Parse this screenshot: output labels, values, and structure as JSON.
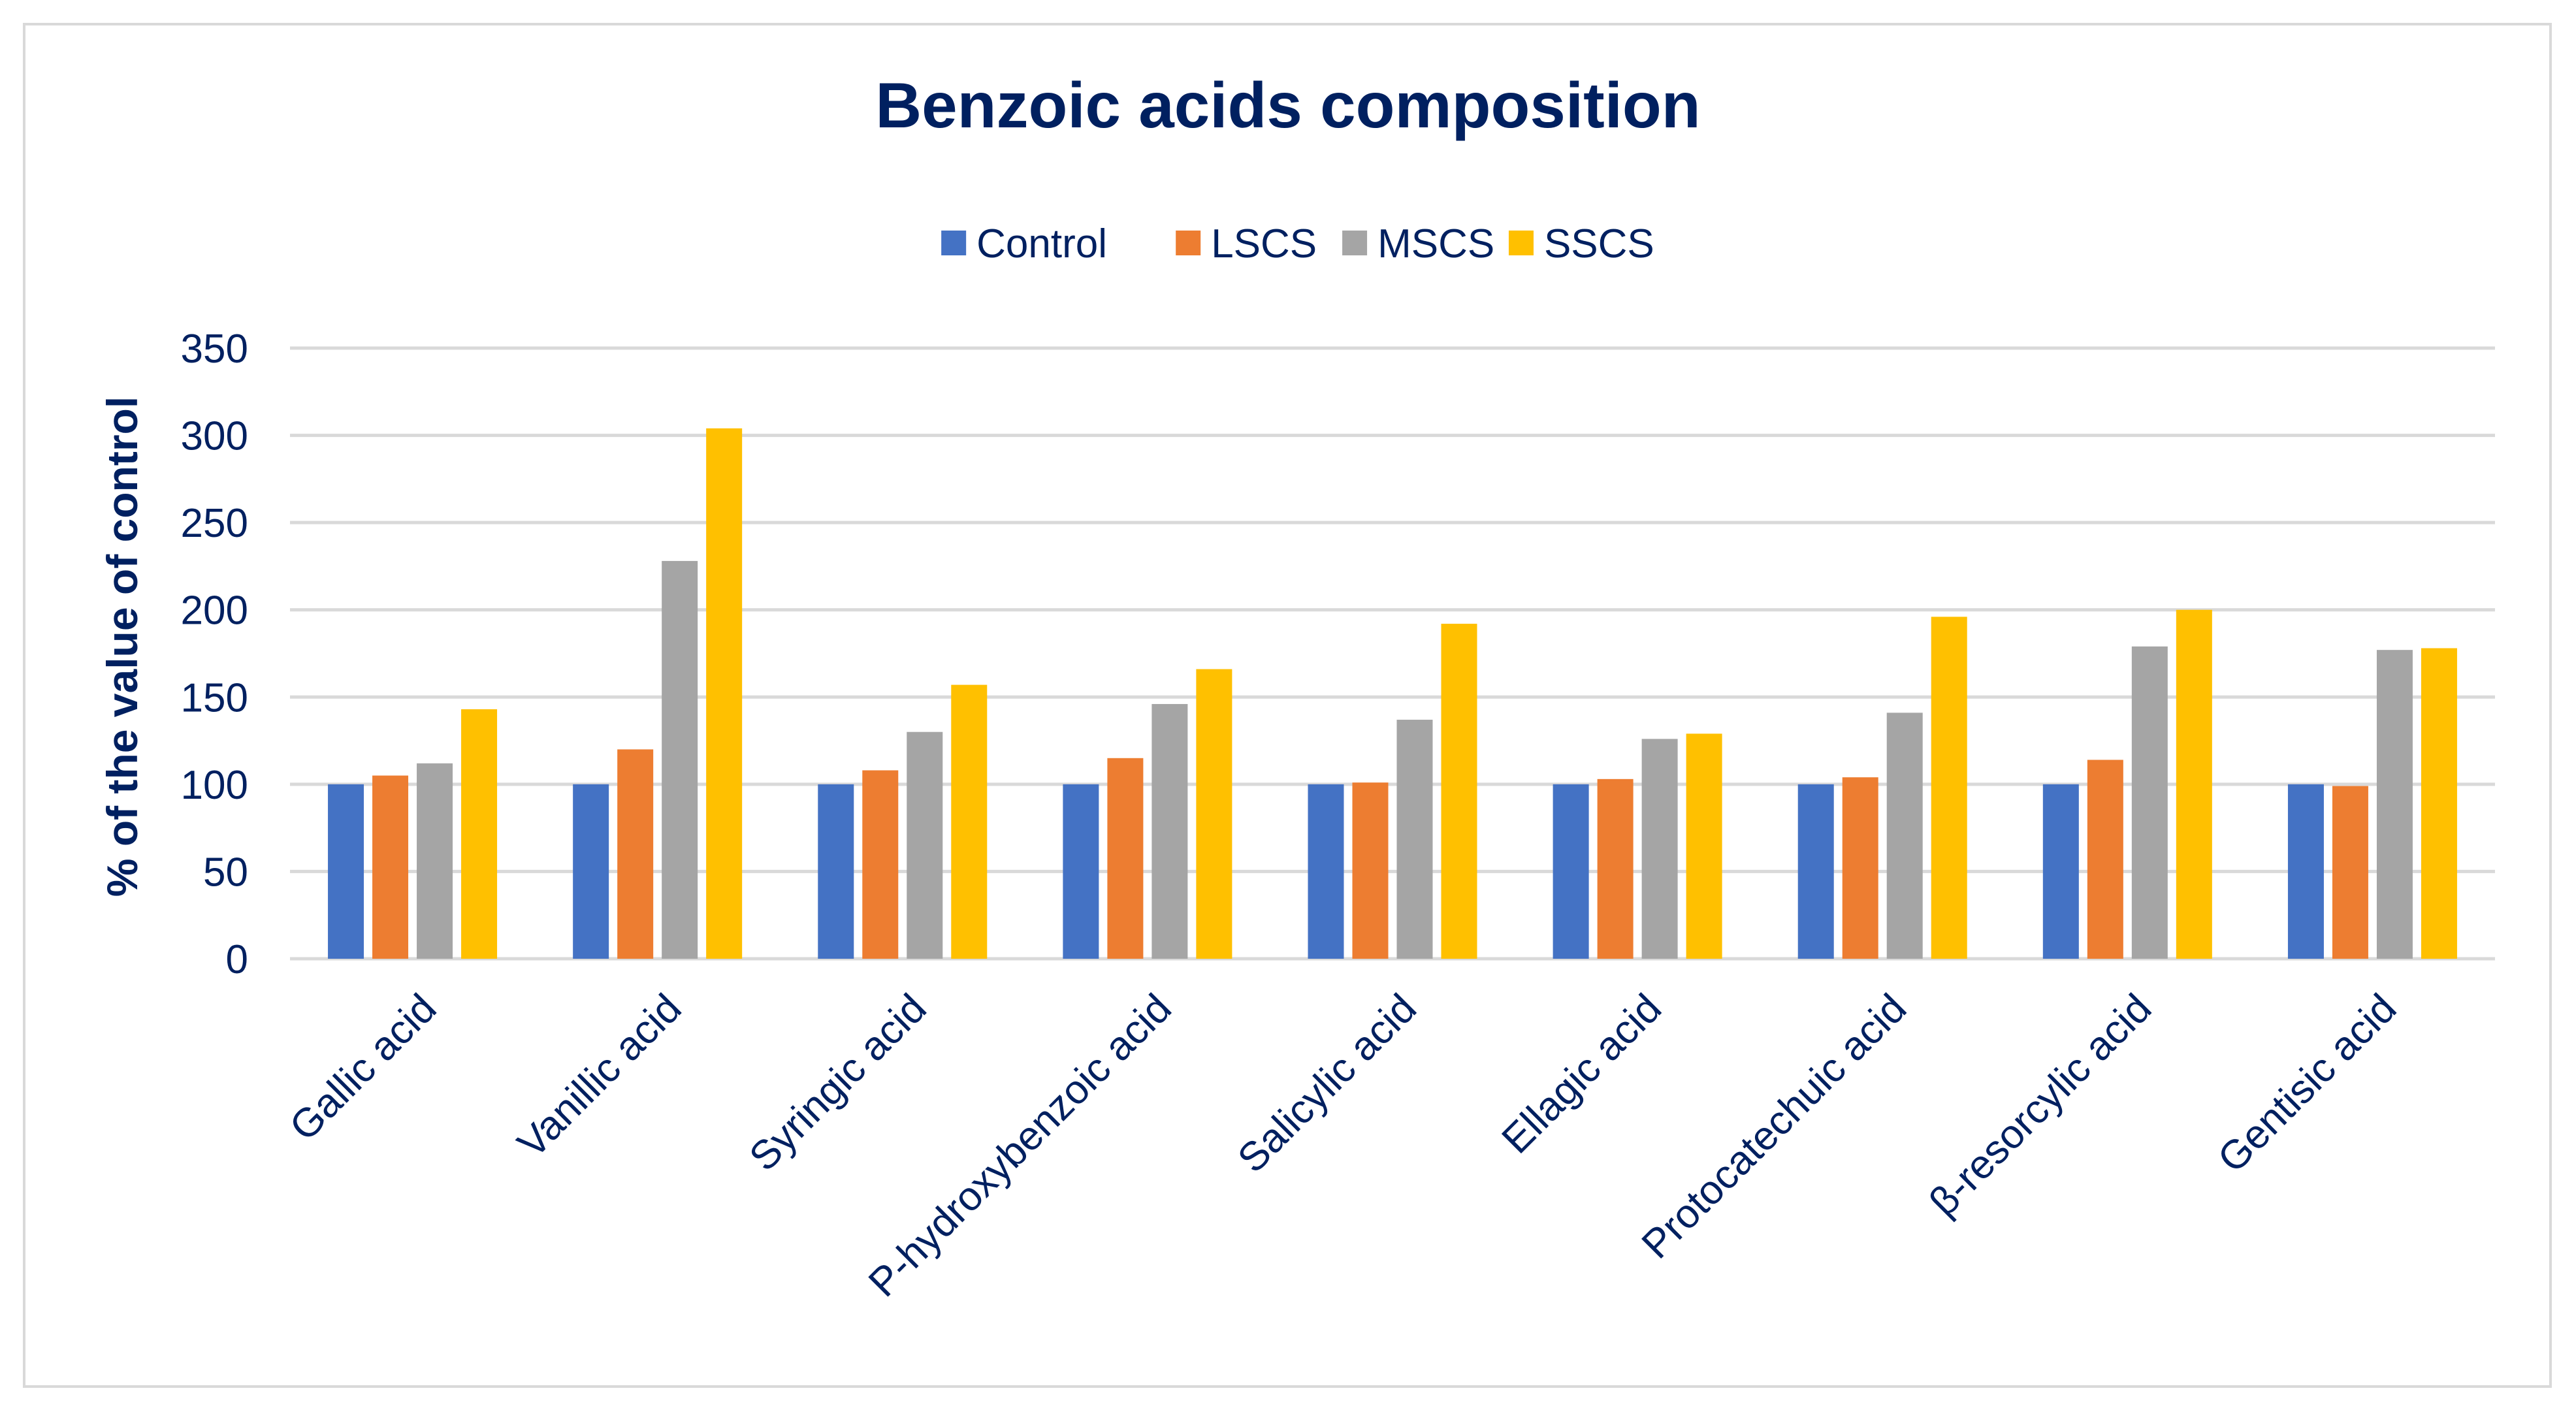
{
  "chart_data": {
    "type": "bar",
    "title": "Benzoic acids composition",
    "xlabel": "",
    "ylabel": "% of the value of control",
    "ylim": [
      0,
      350
    ],
    "yticks": [
      0,
      50,
      100,
      150,
      200,
      250,
      300,
      350
    ],
    "grid": true,
    "legend_position": "top-center",
    "categories": [
      "Gallic acid",
      "Vanillic acid",
      "Syringic acid",
      "P-hydroxybenzoic acid",
      "Salicylic acid",
      "Ellagic acid",
      "Protocatechuic acid",
      "β-resorcylic acid",
      "Gentisic acid"
    ],
    "series": [
      {
        "name": "Control",
        "color": "#4472c4",
        "values": [
          100,
          100,
          100,
          100,
          100,
          100,
          100,
          100,
          100
        ]
      },
      {
        "name": "LSCS",
        "color": "#ed7d31",
        "values": [
          105,
          120,
          108,
          115,
          101,
          103,
          104,
          114,
          99
        ]
      },
      {
        "name": "MSCS",
        "color": "#a5a5a5",
        "values": [
          112,
          228,
          130,
          146,
          137,
          126,
          141,
          179,
          177
        ]
      },
      {
        "name": "SSCS",
        "color": "#ffc000",
        "values": [
          143,
          304,
          157,
          166,
          192,
          129,
          196,
          200,
          178
        ]
      }
    ],
    "colors": {
      "text": "#002060",
      "grid": "#d9d9d9"
    }
  }
}
